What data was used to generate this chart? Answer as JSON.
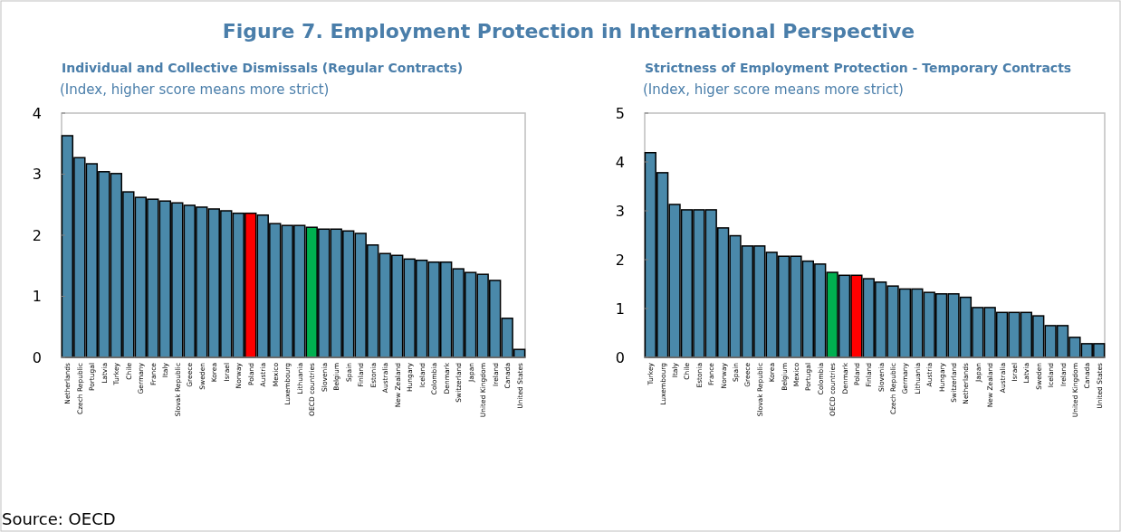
{
  "chart_data": [
    {
      "type": "bar",
      "title": "Individual and Collective Dismissals (Regular Contracts)",
      "subtitle": "(Index, higher score means more strict)",
      "annotations": [
        "Figure 7. Employment Protection in International Perspective",
        "Source: OECD"
      ],
      "categories": [
        "Netherlands",
        "Czech Republic",
        "Portugal",
        "Latvia",
        "Turkey",
        "Chile",
        "Germany",
        "France",
        "Italy",
        "Slovak Republic",
        "Greece",
        "Sweden",
        "Korea",
        "Israel",
        "Norway",
        "Poland",
        "Austria",
        "Mexico",
        "Luxembourg",
        "Lithuania",
        "OECD countries",
        "Slovenia",
        "Belgium",
        "Spain",
        "Finland",
        "Estonia",
        "Australia",
        "New Zealand",
        "Hungary",
        "Iceland",
        "Colombia",
        "Denmark",
        "Switzerland",
        "Japan",
        "United Kingdom",
        "Ireland",
        "Canada",
        "United States"
      ],
      "values": [
        3.63,
        3.27,
        3.17,
        3.04,
        3.01,
        2.71,
        2.62,
        2.59,
        2.56,
        2.53,
        2.49,
        2.46,
        2.43,
        2.4,
        2.36,
        2.36,
        2.33,
        2.19,
        2.16,
        2.16,
        2.13,
        2.1,
        2.1,
        2.07,
        2.03,
        1.84,
        1.7,
        1.67,
        1.61,
        1.59,
        1.56,
        1.56,
        1.45,
        1.39,
        1.36,
        1.26,
        0.64,
        0.13
      ],
      "colors": [
        "#4a89aa",
        "#4a89aa",
        "#4a89aa",
        "#4a89aa",
        "#4a89aa",
        "#4a89aa",
        "#4a89aa",
        "#4a89aa",
        "#4a89aa",
        "#4a89aa",
        "#4a89aa",
        "#4a89aa",
        "#4a89aa",
        "#4a89aa",
        "#4a89aa",
        "#ff0000",
        "#4a89aa",
        "#4a89aa",
        "#4a89aa",
        "#4a89aa",
        "#00b050",
        "#4a89aa",
        "#4a89aa",
        "#4a89aa",
        "#4a89aa",
        "#4a89aa",
        "#4a89aa",
        "#4a89aa",
        "#4a89aa",
        "#4a89aa",
        "#4a89aa",
        "#4a89aa",
        "#4a89aa",
        "#4a89aa",
        "#4a89aa",
        "#4a89aa",
        "#4a89aa",
        "#4a89aa"
      ],
      "ylim": [
        0,
        4
      ],
      "yticks": [
        0,
        1,
        2,
        3,
        4
      ]
    },
    {
      "type": "bar",
      "title": "Strictness of Employment Protection - Temporary Contracts",
      "subtitle": "(Index, higer score means more strict)",
      "categories": [
        "Turkey",
        "Luxembourg",
        "Italy",
        "Chile",
        "Estonia",
        "France",
        "Norway",
        "Spain",
        "Greece",
        "Slovak Republic",
        "Korea",
        "Belgium",
        "Mexico",
        "Portugal",
        "Colombia",
        "OECD countries",
        "Denmark",
        "Poland",
        "Finland",
        "Slovenia",
        "Czech Republic",
        "Germany",
        "Lithuania",
        "Austria",
        "Hungary",
        "Switzerland",
        "Netherlands",
        "Japan",
        "New Zealand",
        "Australia",
        "Israel",
        "Latvia",
        "Sweden",
        "Iceland",
        "Ireland",
        "United Kingdom",
        "Canada",
        "United States"
      ],
      "values": [
        4.19,
        3.78,
        3.13,
        3.02,
        3.02,
        3.02,
        2.65,
        2.49,
        2.28,
        2.28,
        2.15,
        2.07,
        2.07,
        1.97,
        1.91,
        1.74,
        1.68,
        1.68,
        1.61,
        1.54,
        1.46,
        1.4,
        1.4,
        1.33,
        1.3,
        1.3,
        1.23,
        1.02,
        1.02,
        0.92,
        0.92,
        0.92,
        0.85,
        0.65,
        0.65,
        0.41,
        0.28,
        0.28
      ],
      "colors": [
        "#4a89aa",
        "#4a89aa",
        "#4a89aa",
        "#4a89aa",
        "#4a89aa",
        "#4a89aa",
        "#4a89aa",
        "#4a89aa",
        "#4a89aa",
        "#4a89aa",
        "#4a89aa",
        "#4a89aa",
        "#4a89aa",
        "#4a89aa",
        "#4a89aa",
        "#00b050",
        "#4a89aa",
        "#ff0000",
        "#4a89aa",
        "#4a89aa",
        "#4a89aa",
        "#4a89aa",
        "#4a89aa",
        "#4a89aa",
        "#4a89aa",
        "#4a89aa",
        "#4a89aa",
        "#4a89aa",
        "#4a89aa",
        "#4a89aa",
        "#4a89aa",
        "#4a89aa",
        "#4a89aa",
        "#4a89aa",
        "#4a89aa",
        "#4a89aa",
        "#4a89aa",
        "#4a89aa"
      ],
      "ylim": [
        0,
        5
      ],
      "yticks": [
        0,
        1,
        2,
        3,
        4,
        5
      ]
    }
  ]
}
